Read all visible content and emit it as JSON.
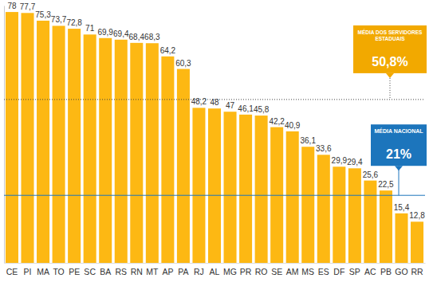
{
  "chart_data": {
    "type": "bar",
    "categories": [
      "CE",
      "PI",
      "MA",
      "TO",
      "PE",
      "SC",
      "BA",
      "RS",
      "RN",
      "MT",
      "AP",
      "PA",
      "RJ",
      "AL",
      "MG",
      "PR",
      "RO",
      "SE",
      "AM",
      "MS",
      "ES",
      "DF",
      "SP",
      "AC",
      "PB",
      "GO",
      "RR"
    ],
    "values": [
      78,
      77.7,
      75.3,
      73.7,
      72.8,
      71,
      69.9,
      69.4,
      68.4,
      68.3,
      64.2,
      60.3,
      48.2,
      48,
      47,
      46.1,
      45.8,
      42.2,
      40.9,
      36.1,
      33.6,
      29.9,
      29.4,
      25.6,
      22.5,
      15.4,
      12.8
    ],
    "value_labels": [
      "78",
      "77,7",
      "75,3",
      "73,7",
      "72,8",
      "71",
      "69,9",
      "69,4",
      "68,4",
      "68,3",
      "64,2",
      "60,3",
      "48,2",
      "48",
      "47",
      "46,1",
      "45,8",
      "42,2",
      "40,9",
      "36,1",
      "33,6",
      "29,9",
      "29,4",
      "25,6",
      "22,5",
      "15,4",
      "12,8"
    ],
    "color": "#fdb813",
    "ylim": [
      0,
      80
    ],
    "tick_labels": "x",
    "data_labels": true,
    "grid": false,
    "reference_lines": [
      {
        "value": 50.8,
        "label": [
          "MÉDIA DOS SERVIDORES",
          "ESTADUAIS"
        ],
        "value_label": "50,8%",
        "color": "#f2a900",
        "line_style": "dotted"
      },
      {
        "value": 21,
        "label": [
          "MÉDIA NACIONAL"
        ],
        "value_label": "21%",
        "color": "#1c75bc",
        "line_style": "solid"
      }
    ]
  }
}
